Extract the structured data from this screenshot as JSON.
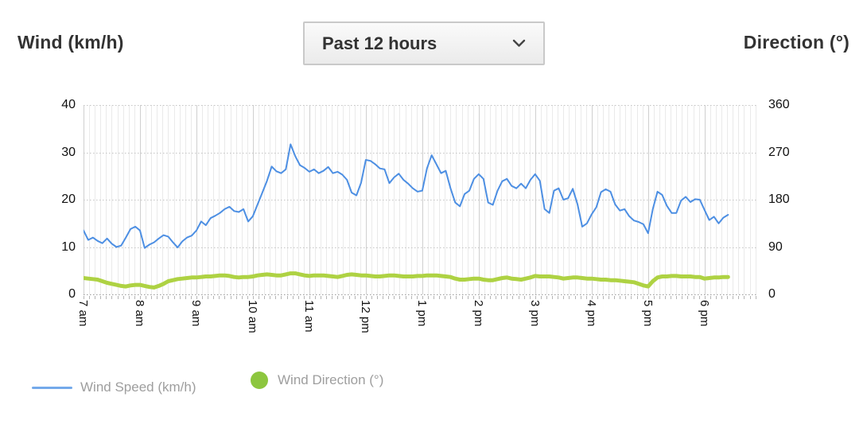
{
  "header": {
    "left_title": "Wind (km/h)",
    "right_title": "Direction (°)",
    "dropdown": {
      "selected": "Past 12 hours"
    }
  },
  "legend": {
    "speed_label": "Wind Speed (km/h)",
    "direction_label": "Wind Direction (°)"
  },
  "chart_data": {
    "type": "line",
    "title": "",
    "x_start_time": "7:00 am",
    "x_interval_minutes": 5,
    "x_tick_labels": [
      "7 am",
      "8 am",
      "9 am",
      "10 am",
      "11 am",
      "12 pm",
      "1 pm",
      "2 pm",
      "3 pm",
      "4 pm",
      "5 pm",
      "6 pm"
    ],
    "x_axis_span_minutes": 716,
    "grid": true,
    "minor_grid_minutes": 6,
    "left_axis": {
      "title": "Wind (km/h)",
      "ticks": [
        0,
        10,
        20,
        30,
        40
      ],
      "range": [
        0,
        40
      ]
    },
    "right_axis": {
      "title": "Direction (°)",
      "ticks": [
        0,
        90,
        180,
        270,
        360
      ],
      "range": [
        0,
        360
      ]
    },
    "legend_position": "bottom-left",
    "series": [
      {
        "name": "Wind Speed (km/h)",
        "axis": "left",
        "color": "#4d8fe3",
        "legend_color": "#74a9ea",
        "stroke_width": 2,
        "values": [
          13.5,
          11.5,
          12.0,
          11.3,
          10.8,
          11.8,
          10.7,
          10.0,
          10.3,
          12.0,
          13.8,
          14.3,
          13.5,
          9.8,
          10.5,
          11.0,
          11.8,
          12.5,
          12.2,
          11.0,
          9.9,
          11.2,
          12.0,
          12.4,
          13.5,
          15.4,
          14.6,
          16.1,
          16.6,
          17.2,
          18.0,
          18.5,
          17.6,
          17.4,
          18.0,
          15.4,
          16.5,
          19.0,
          21.5,
          24.0,
          27.0,
          26.0,
          25.6,
          26.4,
          31.7,
          29.2,
          27.3,
          26.7,
          25.9,
          26.4,
          25.6,
          26.1,
          26.9,
          25.6,
          25.9,
          25.3,
          24.2,
          21.5,
          20.9,
          23.6,
          28.4,
          28.2,
          27.5,
          26.6,
          26.4,
          23.5,
          24.7,
          25.5,
          24.2,
          23.4,
          22.4,
          21.7,
          21.9,
          26.6,
          29.4,
          27.5,
          25.6,
          26.1,
          22.4,
          19.4,
          18.6,
          21.2,
          21.9,
          24.4,
          25.4,
          24.4,
          19.4,
          18.9,
          21.9,
          23.9,
          24.4,
          22.9,
          22.4,
          23.4,
          22.4,
          24.2,
          25.4,
          24.0,
          18.0,
          17.2,
          21.9,
          22.4,
          20.0,
          20.3,
          22.3,
          19.0,
          14.3,
          15.0,
          16.9,
          18.4,
          21.6,
          22.2,
          21.7,
          19.0,
          17.7,
          18.0,
          16.5,
          15.6,
          15.3,
          14.8,
          12.9,
          18.0,
          21.7,
          21.0,
          18.7,
          17.2,
          17.2,
          19.8,
          20.6,
          19.5,
          20.1,
          20.0,
          17.8,
          15.7,
          16.4,
          15.0,
          16.2,
          16.8
        ]
      },
      {
        "name": "Wind Direction (°)",
        "axis": "right",
        "color": "#aed243",
        "legend_color": "#8dc63f",
        "stroke_width": 5,
        "values": [
          31,
          30,
          29,
          28,
          25,
          22,
          20,
          18,
          16,
          15,
          17,
          18,
          18,
          16,
          14,
          13,
          16,
          20,
          25,
          27,
          29,
          30,
          31,
          32,
          32,
          33,
          34,
          34,
          35,
          36,
          36,
          35,
          33,
          32,
          33,
          33,
          34,
          36,
          37,
          38,
          37,
          36,
          36,
          38,
          40,
          40,
          38,
          36,
          35,
          36,
          36,
          36,
          35,
          34,
          33,
          35,
          37,
          38,
          37,
          36,
          36,
          35,
          34,
          34,
          35,
          36,
          36,
          35,
          34,
          34,
          34,
          35,
          35,
          36,
          36,
          36,
          35,
          34,
          33,
          30,
          28,
          28,
          29,
          30,
          30,
          28,
          27,
          27,
          29,
          31,
          32,
          30,
          29,
          28,
          30,
          32,
          35,
          34,
          34,
          34,
          33,
          32,
          30,
          31,
          32,
          32,
          31,
          30,
          30,
          29,
          28,
          28,
          27,
          27,
          26,
          25,
          24,
          23,
          20,
          17,
          15,
          25,
          32,
          34,
          34,
          35,
          35,
          34,
          34,
          34,
          33,
          33,
          30,
          31,
          32,
          32,
          33,
          33
        ]
      }
    ]
  }
}
